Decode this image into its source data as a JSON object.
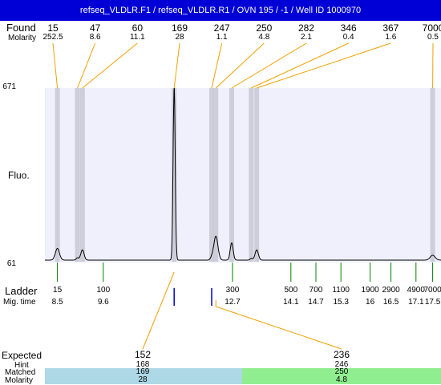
{
  "header": {
    "title": "refseq_VLDLR.F1 / refseq_VLDLR.R1 / OVN 195 / -1 / Well ID 1000970"
  },
  "labels": {
    "found": "Found",
    "molarity": "Molarity",
    "fluo": "Fluo.",
    "ladder": "Ladder",
    "mig_time": "Mig. time",
    "expected": "Expected",
    "hint": "Hint",
    "matched": "Matched",
    "molarity_bottom": "Molarity"
  },
  "colors": {
    "header_bg": "#0000d6",
    "plot_bg": "#f0f0fc",
    "peak_band": "#c8c8d4",
    "found_line": "#f0a000",
    "ladder_tick": "#008000",
    "trace": "#000000",
    "matched_band_1": "#add8e6",
    "matched_band_2": "#90ee90",
    "marker": "#0000d6"
  },
  "chart_data": {
    "type": "line",
    "title": "refseq_VLDLR.F1 / refseq_VLDLR.R1 / OVN 195 / -1 / Well ID 1000970",
    "ylabel": "Fluo.",
    "ylim": [
      61,
      671
    ],
    "y_ticks": [
      "671",
      "61"
    ],
    "mig_time_range": [
      8.2,
      17.7
    ],
    "found_peaks": [
      {
        "size": "15",
        "molarity": "252.5",
        "mig_time": 8.5,
        "height": 102
      },
      {
        "size": "47",
        "molarity": "8.6",
        "mig_time": 8.98,
        "height": 8
      },
      {
        "size": "60",
        "molarity": "11.1",
        "mig_time": 9.1,
        "height": 36
      },
      {
        "size": "169",
        "molarity": "28",
        "mig_time": 11.3,
        "height": 671
      },
      {
        "size": "247",
        "molarity": "1.1",
        "mig_time": 12.2,
        "height": 8
      },
      {
        "size": "250",
        "molarity": "4.8",
        "mig_time": 12.3,
        "height": 145
      },
      {
        "size": "282",
        "molarity": "2.1",
        "mig_time": 12.68,
        "height": 61
      },
      {
        "size": "346",
        "molarity": "0.4",
        "mig_time": 13.15,
        "height": 6
      },
      {
        "size": "367",
        "molarity": "1.6",
        "mig_time": 13.28,
        "height": 36
      },
      {
        "size": "7000",
        "molarity": "0.5",
        "mig_time": 17.5,
        "height": 78
      }
    ],
    "ladder": [
      {
        "size": "15",
        "mig_time": "8.5",
        "t": 8.5
      },
      {
        "size": "100",
        "mig_time": "9.6",
        "t": 9.6
      },
      {
        "size": "300",
        "mig_time": "12.7",
        "t": 12.7
      },
      {
        "size": "500",
        "mig_time": "14.1",
        "t": 14.1
      },
      {
        "size": "700",
        "mig_time": "14.7",
        "t": 14.7
      },
      {
        "size": "1100",
        "mig_time": "15.3",
        "t": 15.3
      },
      {
        "size": "1900",
        "mig_time": "16",
        "t": 16.0
      },
      {
        "size": "2900",
        "mig_time": "16.5",
        "t": 16.5
      },
      {
        "size": "4900",
        "mig_time": "17.1",
        "t": 17.1
      },
      {
        "size": "7000",
        "mig_time": "17.5",
        "t": 17.5
      }
    ],
    "markers": [
      {
        "t": 11.3
      },
      {
        "t": 12.2
      }
    ],
    "expected": [
      {
        "expected": "152",
        "hint": "168",
        "matched": "169",
        "molarity": "28",
        "mig_time": 11.3
      },
      {
        "expected": "236",
        "hint": "246",
        "matched": "250",
        "molarity": "4.8",
        "mig_time": 12.3
      }
    ]
  }
}
